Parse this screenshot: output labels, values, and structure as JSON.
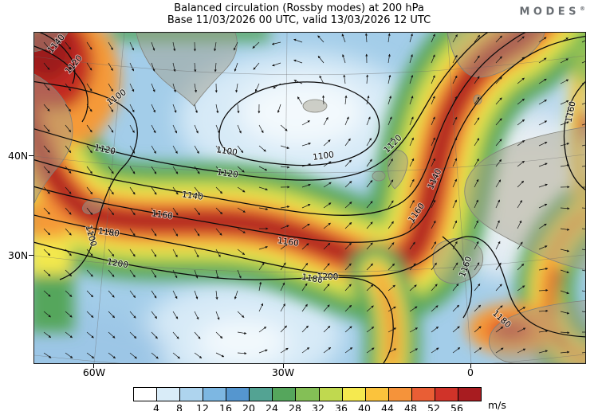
{
  "header": {
    "title": "Balanced circulation (Rossby modes) at 200 hPa",
    "subtitle": "Base 11/03/2026 00 UTC, valid 13/03/2026 12 UTC",
    "logo_text": "MODES",
    "logo_reg": "®"
  },
  "map": {
    "y_axis_labels": [
      "40N",
      "30N"
    ],
    "x_axis_labels": [
      "60W",
      "30W",
      "0"
    ],
    "contour_levels": [
      "1100",
      "1120",
      "1140",
      "1160",
      "1180",
      "1200"
    ]
  },
  "colorbar": {
    "ticks": [
      "4",
      "8",
      "12",
      "16",
      "20",
      "24",
      "28",
      "32",
      "36",
      "40",
      "44",
      "48",
      "52",
      "56"
    ],
    "unit": "m/s",
    "colors": [
      "#ffffff",
      "#d9ecf8",
      "#aed4ee",
      "#7db7e2",
      "#5596cf",
      "#53a393",
      "#55a65c",
      "#84bf56",
      "#c0d94f",
      "#f5e94f",
      "#fbc33c",
      "#f5933a",
      "#e95e35",
      "#d03329",
      "#a81c20"
    ]
  },
  "chart_data": {
    "type": "heatmap",
    "title": "Balanced circulation (Rossby modes) at 200 hPa",
    "subtitle": "Base 11/03/2026 00 UTC, valid 13/03/2026 12 UTC",
    "variable": "balanced wind speed (Rossby modes) at 200 hPa",
    "unit": "m/s",
    "colorbar_ticks": [
      4,
      8,
      12,
      16,
      20,
      24,
      28,
      32,
      36,
      40,
      44,
      48,
      52,
      56
    ],
    "colorbar_colors": [
      "#ffffff",
      "#d9ecf8",
      "#aed4ee",
      "#7db7e2",
      "#5596cf",
      "#53a393",
      "#55a65c",
      "#84bf56",
      "#c0d94f",
      "#f5e94f",
      "#fbc33c",
      "#f5933a",
      "#e95e35",
      "#d03329",
      "#a81c20"
    ],
    "contour_levels": [
      1100,
      1120,
      1140,
      1160,
      1180,
      1200
    ],
    "x_tick_labels": [
      "60W",
      "30W",
      "0"
    ],
    "y_tick_labels": [
      "40N",
      "30N"
    ],
    "legend_position": "bottom",
    "overlays": [
      "wind vector arrows",
      "labelled height contours",
      "coastlines",
      "lat-lon graticule"
    ]
  }
}
